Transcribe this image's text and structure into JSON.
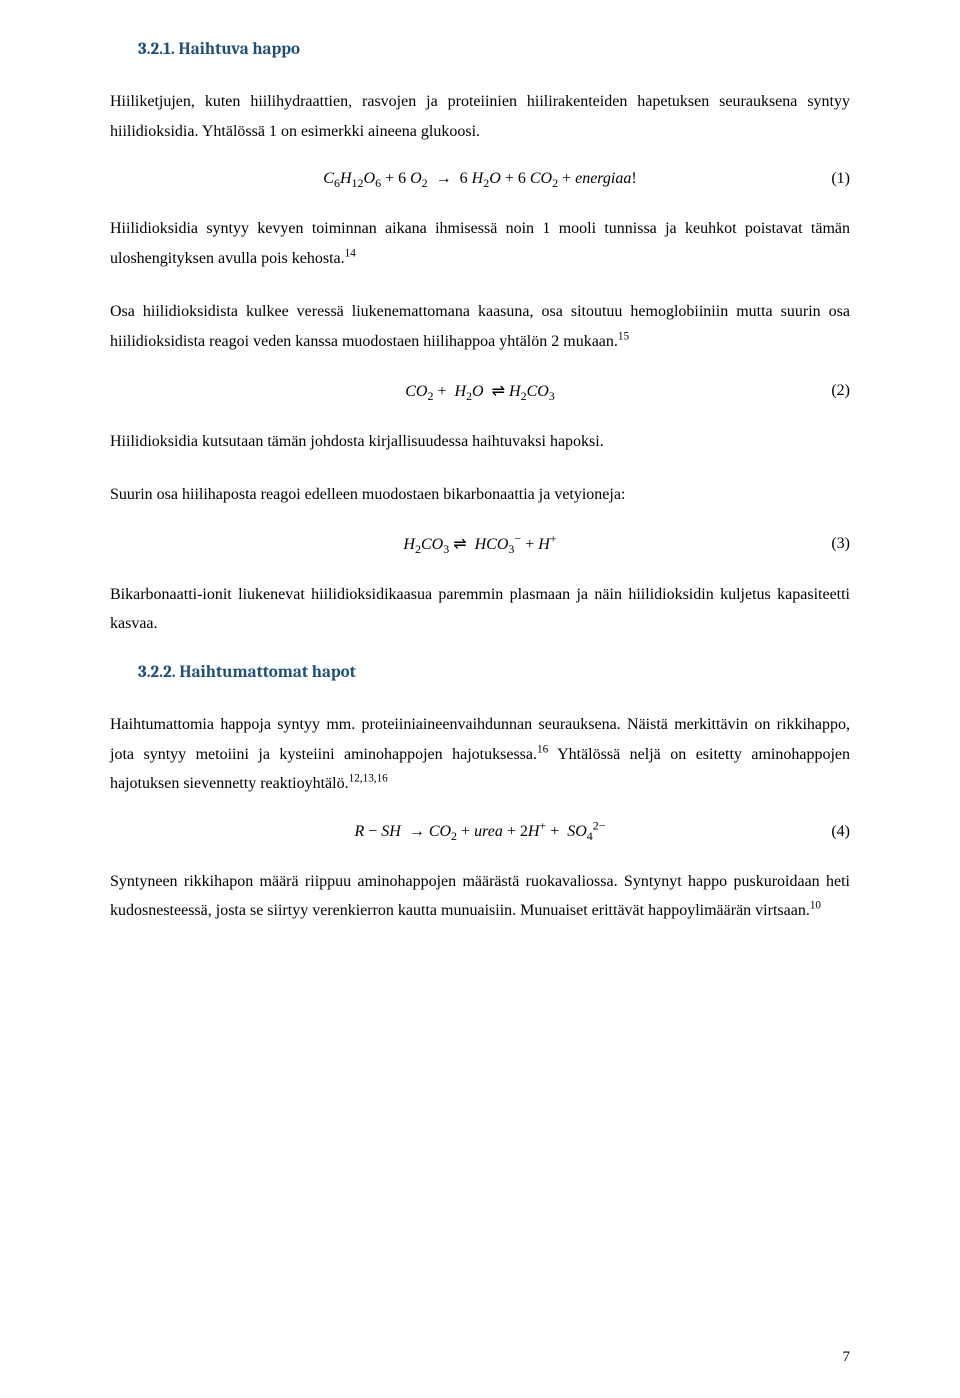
{
  "section1": {
    "number": "3.2.1.",
    "title": "Haihtuva happo"
  },
  "p1": "Hiiliketjujen, kuten hiilihydraattien, rasvojen ja proteiinien hiilirakenteiden hapetuksen seurauksena syntyy hiilidioksidia. Yhtälössä 1 on esimerkki aineena glukoosi.",
  "eq1": {
    "content": "C₆H₁₂O₆ + 6 O₂ → 6 H₂O + 6 CO₂ + energiaa!",
    "number": "(1)"
  },
  "p2a": "Hiilidioksidia syntyy kevyen toiminnan aikana ihmisessä noin 1 mooli tunnissa ja keuhkot poistavat tämän uloshengityksen avulla pois kehosta.",
  "p2ref": "14",
  "p3a": "Osa hiilidioksidista kulkee veressä liukenemattomana kaasuna, osa sitoutuu hemoglobiiniin mutta suurin osa hiilidioksidista reagoi veden kanssa muodostaen hiilihappoa yhtälön 2 mukaan.",
  "p3ref": "15",
  "eq2": {
    "content": "CO₂ +  H₂O  ⇌ H₂CO₃",
    "number": "(2)"
  },
  "p4": "Hiilidioksidia kutsutaan tämän johdosta kirjallisuudessa haihtuvaksi hapoksi.",
  "p5": "Suurin osa hiilihaposta reagoi edelleen muodostaen bikarbonaattia ja vetyioneja:",
  "eq3": {
    "content": "H₂CO₃ ⇌  HCO₃⁻ + H⁺",
    "number": "(3)"
  },
  "p6": "Bikarbonaatti-ionit liukenevat hiilidioksidikaasua paremmin plasmaan ja näin hiilidioksidin kuljetus kapasiteetti kasvaa.",
  "section2": {
    "number": "3.2.2.",
    "title": "Haihtumattomat hapot"
  },
  "p7a": "Haihtumattomia happoja syntyy mm. proteiiniaineenvaihdunnan seurauksena. Näistä merkittävin on rikkihappo, jota syntyy metoiini ja kysteiini aminohappojen hajotuksessa.",
  "p7ref": "16",
  "p7b": "Yhtälössä neljä on esitetty aminohappojen hajotuksen sievennetty reaktioyhtälö.",
  "p7ref2": "12,13,16",
  "eq4": {
    "content": "R − SH  → CO₂ + urea + 2H⁺ +  SO₄²⁻",
    "number": "(4)"
  },
  "p8a": "Syntyneen rikkihapon määrä riippuu aminohappojen määrästä ruokavaliossa. Syntynyt happo puskuroidaan heti kudosnesteessä, josta se siirtyy verenkierron kautta munuaisiin. Munuaiset erittävät happoylimäärän virtsaan.",
  "p8ref": "10",
  "pageNumber": "7"
}
